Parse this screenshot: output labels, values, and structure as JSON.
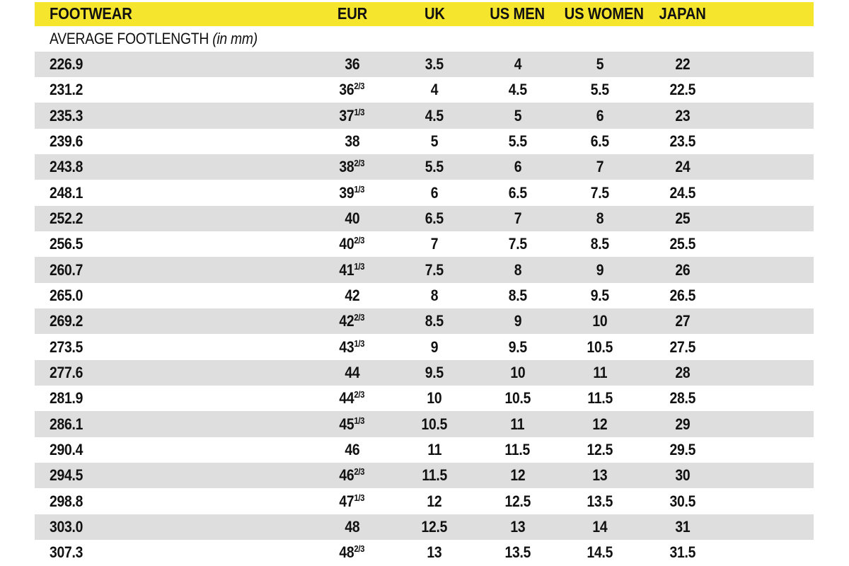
{
  "colors": {
    "header_bg": "#F5E52D",
    "row_alt_bg": "#DEDEDE",
    "text": "#111111"
  },
  "chart_data": {
    "type": "table",
    "title": "FOOTWEAR",
    "columns": [
      "FOOTWEAR",
      "EUR",
      "UK",
      "US MEN",
      "US WOMEN",
      "JAPAN"
    ],
    "subheader_label": "AVERAGE FOOTLENGTH",
    "subheader_note": "(in mm)",
    "rows": [
      {
        "footlength": "226.9",
        "eur_base": "36",
        "eur_frac": "",
        "uk": "3.5",
        "us_men": "4",
        "us_women": "5",
        "japan": "22"
      },
      {
        "footlength": "231.2",
        "eur_base": "36",
        "eur_frac": "2/3",
        "uk": "4",
        "us_men": "4.5",
        "us_women": "5.5",
        "japan": "22.5"
      },
      {
        "footlength": "235.3",
        "eur_base": "37",
        "eur_frac": "1/3",
        "uk": "4.5",
        "us_men": "5",
        "us_women": "6",
        "japan": "23"
      },
      {
        "footlength": "239.6",
        "eur_base": "38",
        "eur_frac": "",
        "uk": "5",
        "us_men": "5.5",
        "us_women": "6.5",
        "japan": "23.5"
      },
      {
        "footlength": "243.8",
        "eur_base": "38",
        "eur_frac": "2/3",
        "uk": "5.5",
        "us_men": "6",
        "us_women": "7",
        "japan": "24"
      },
      {
        "footlength": "248.1",
        "eur_base": "39",
        "eur_frac": "1/3",
        "uk": "6",
        "us_men": "6.5",
        "us_women": "7.5",
        "japan": "24.5"
      },
      {
        "footlength": "252.2",
        "eur_base": "40",
        "eur_frac": "",
        "uk": "6.5",
        "us_men": "7",
        "us_women": "8",
        "japan": "25"
      },
      {
        "footlength": "256.5",
        "eur_base": "40",
        "eur_frac": "2/3",
        "uk": "7",
        "us_men": "7.5",
        "us_women": "8.5",
        "japan": "25.5"
      },
      {
        "footlength": "260.7",
        "eur_base": "41",
        "eur_frac": "1/3",
        "uk": "7.5",
        "us_men": "8",
        "us_women": "9",
        "japan": "26"
      },
      {
        "footlength": "265.0",
        "eur_base": "42",
        "eur_frac": "",
        "uk": "8",
        "us_men": "8.5",
        "us_women": "9.5",
        "japan": "26.5"
      },
      {
        "footlength": "269.2",
        "eur_base": "42",
        "eur_frac": "2/3",
        "uk": "8.5",
        "us_men": "9",
        "us_women": "10",
        "japan": "27"
      },
      {
        "footlength": "273.5",
        "eur_base": "43",
        "eur_frac": "1/3",
        "uk": "9",
        "us_men": "9.5",
        "us_women": "10.5",
        "japan": "27.5"
      },
      {
        "footlength": "277.6",
        "eur_base": "44",
        "eur_frac": "",
        "uk": "9.5",
        "us_men": "10",
        "us_women": "11",
        "japan": "28"
      },
      {
        "footlength": "281.9",
        "eur_base": "44",
        "eur_frac": "2/3",
        "uk": "10",
        "us_men": "10.5",
        "us_women": "11.5",
        "japan": "28.5"
      },
      {
        "footlength": "286.1",
        "eur_base": "45",
        "eur_frac": "1/3",
        "uk": "10.5",
        "us_men": "11",
        "us_women": "12",
        "japan": "29"
      },
      {
        "footlength": "290.4",
        "eur_base": "46",
        "eur_frac": "",
        "uk": "11",
        "us_men": "11.5",
        "us_women": "12.5",
        "japan": "29.5"
      },
      {
        "footlength": "294.5",
        "eur_base": "46",
        "eur_frac": "2/3",
        "uk": "11.5",
        "us_men": "12",
        "us_women": "13",
        "japan": "30"
      },
      {
        "footlength": "298.8",
        "eur_base": "47",
        "eur_frac": "1/3",
        "uk": "12",
        "us_men": "12.5",
        "us_women": "13.5",
        "japan": "30.5"
      },
      {
        "footlength": "303.0",
        "eur_base": "48",
        "eur_frac": "",
        "uk": "12.5",
        "us_men": "13",
        "us_women": "14",
        "japan": "31"
      },
      {
        "footlength": "307.3",
        "eur_base": "48",
        "eur_frac": "2/3",
        "uk": "13",
        "us_men": "13.5",
        "us_women": "14.5",
        "japan": "31.5"
      }
    ]
  }
}
